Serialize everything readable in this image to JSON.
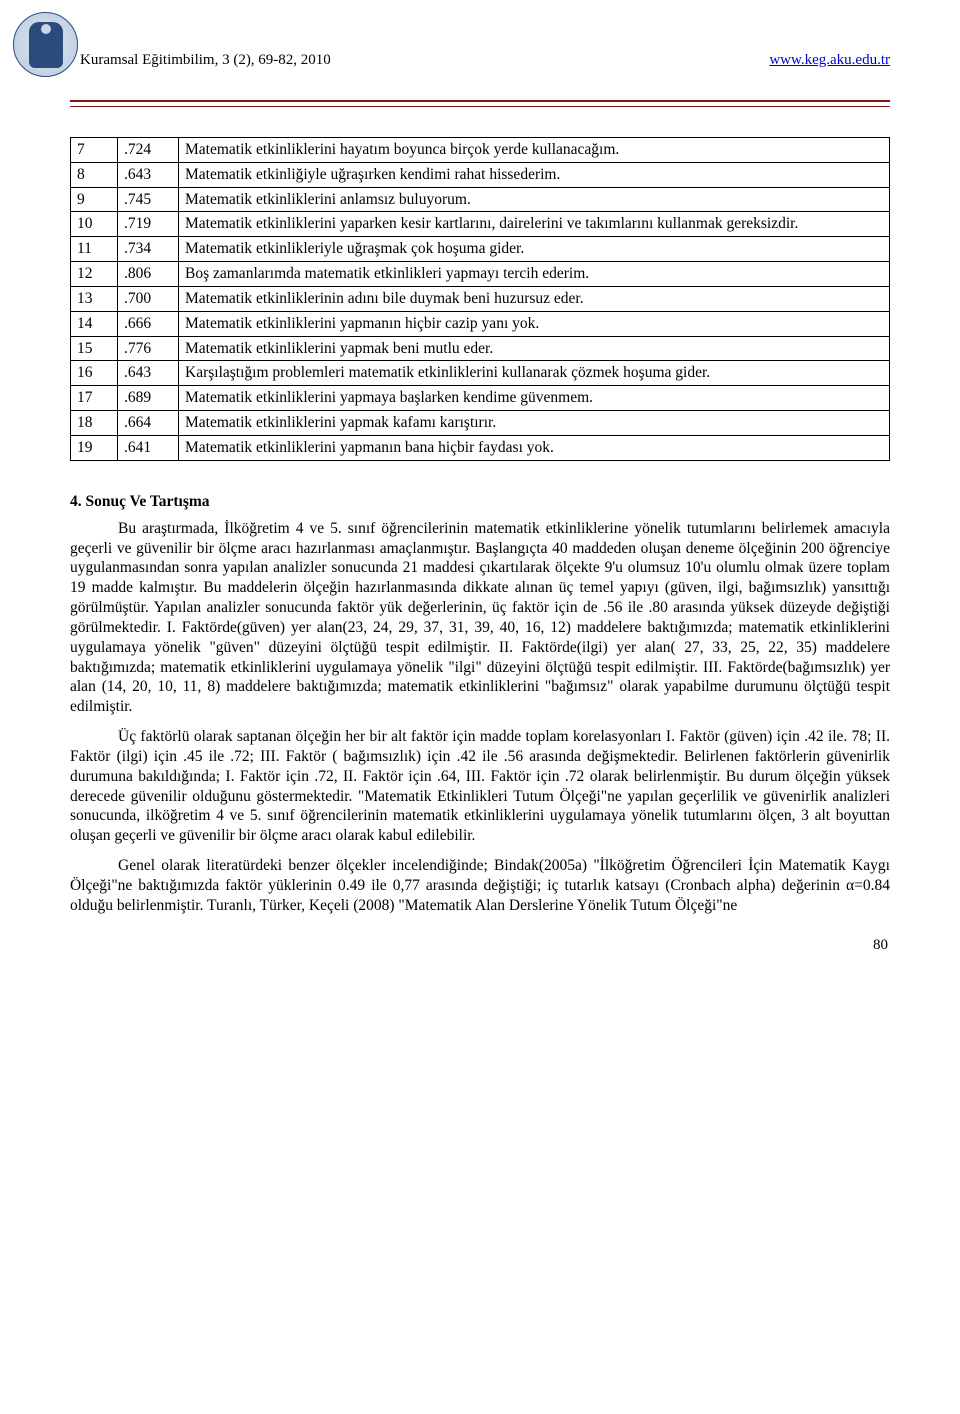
{
  "header": {
    "journal_ref": "Kuramsal Eğitimbilim, 3 (2), 69-82, 2010",
    "site_url": "www.keg.aku.edu.tr"
  },
  "table": {
    "rows": [
      {
        "n": "7",
        "v": ".724",
        "text": "Matematik etkinliklerini hayatım boyunca birçok yerde kullanacağım."
      },
      {
        "n": "8",
        "v": ".643",
        "text": "Matematik etkinliğiyle uğraşırken kendimi rahat hissederim."
      },
      {
        "n": "9",
        "v": ".745",
        "text": "Matematik etkinliklerini anlamsız buluyorum."
      },
      {
        "n": "10",
        "v": ".719",
        "text": "Matematik etkinliklerini yaparken kesir kartlarını, dairelerini ve takımlarını kullanmak gereksizdir."
      },
      {
        "n": "11",
        "v": ".734",
        "text": "Matematik etkinlikleriyle uğraşmak çok hoşuma gider."
      },
      {
        "n": "12",
        "v": ".806",
        "text": "Boş zamanlarımda matematik etkinlikleri yapmayı tercih ederim."
      },
      {
        "n": "13",
        "v": ".700",
        "text": "Matematik etkinliklerinin adını bile duymak beni huzursuz eder."
      },
      {
        "n": "14",
        "v": ".666",
        "text": "Matematik etkinliklerini yapmanın hiçbir cazip yanı yok."
      },
      {
        "n": "15",
        "v": ".776",
        "text": "Matematik etkinliklerini yapmak beni mutlu eder."
      },
      {
        "n": "16",
        "v": ".643",
        "text": "Karşılaştığım problemleri matematik etkinliklerini kullanarak çözmek hoşuma gider."
      },
      {
        "n": "17",
        "v": ".689",
        "text": "Matematik etkinliklerini yapmaya başlarken kendime güvenmem."
      },
      {
        "n": "18",
        "v": ".664",
        "text": "Matematik etkinliklerini yapmak kafamı karıştırır."
      },
      {
        "n": "19",
        "v": ".641",
        "text": "Matematik etkinliklerini yapmanın bana hiçbir faydası yok."
      }
    ]
  },
  "section_title": "4. Sonuç Ve Tartışma",
  "paragraphs": {
    "p1": "Bu araştırmada, İlköğretim 4 ve 5. sınıf öğrencilerinin matematik etkinliklerine yönelik tutumlarını belirlemek amacıyla geçerli ve güvenilir bir ölçme aracı hazırlanması amaçlanmıştır. Başlangıçta 40 maddeden oluşan deneme ölçeğinin 200 öğrenciye uygulanmasından sonra yapılan analizler sonucunda 21 maddesi çıkartılarak ölçekte 9'u olumsuz 10'u olumlu olmak üzere toplam 19 madde kalmıştır. Bu maddelerin ölçeğin hazırlanmasında dikkate alınan üç temel yapıyı (güven, ilgi, bağımsızlık) yansıttığı görülmüştür. Yapılan analizler sonucunda faktör yük değerlerinin, üç faktör için de .56 ile .80 arasında yüksek düzeyde değiştiği görülmektedir. I. Faktörde(güven) yer alan(23, 24, 29, 37, 31, 39, 40, 16, 12) maddelere baktığımızda; matematik etkinliklerini uygulamaya yönelik \"güven\" düzeyini ölçtüğü tespit edilmiştir. II. Faktörde(ilgi) yer alan( 27, 33, 25, 22, 35) maddelere baktığımızda; matematik etkinliklerini uygulamaya yönelik \"ilgi\" düzeyini ölçtüğü tespit edilmiştir. III. Faktörde(bağımsızlık) yer alan (14, 20, 10, 11, 8) maddelere baktığımızda; matematik etkinliklerini \"bağımsız\" olarak yapabilme durumunu ölçtüğü tespit edilmiştir.",
    "p2": "Üç faktörlü olarak saptanan ölçeğin her bir alt faktör için madde toplam korelasyonları I. Faktör (güven) için .42 ile. 78; II. Faktör (ilgi) için .45 ile .72; III. Faktör ( bağımsızlık) için .42 ile .56 arasında değişmektedir. Belirlenen faktörlerin güvenirlik durumuna bakıldığında; I. Faktör için .72, II. Faktör için .64, III. Faktör için .72 olarak belirlenmiştir. Bu durum ölçeğin yüksek derecede güvenilir olduğunu göstermektedir. \"Matematik Etkinlikleri Tutum Ölçeği\"ne yapılan geçerlilik ve güvenirlik analizleri sonucunda, ilköğretim 4 ve 5. sınıf öğrencilerinin matematik etkinliklerini uygulamaya yönelik tutumlarını ölçen, 3 alt boyuttan oluşan geçerli ve güvenilir bir ölçme aracı olarak kabul edilebilir.",
    "p3": "Genel olarak literatürdeki benzer ölçekler incelendiğinde; Bindak(2005a) \"İlköğretim Öğrencileri İçin Matematik Kaygı Ölçeği\"ne baktığımızda faktör yüklerinin 0.49 ile 0,77 arasında değiştiği; iç tutarlık katsayı (Cronbach alpha) değerinin α=0.84 olduğu belirlenmiştir. Turanlı, Türker, Keçeli (2008) \"Matematik Alan Derslerine Yönelik Tutum Ölçeği\"ne"
  },
  "page_number": "80",
  "colors": {
    "rule": "#7a1a1a",
    "link": "#0000cc",
    "text": "#000000",
    "logo_border": "#2a4b7c",
    "background": "#ffffff"
  },
  "typography": {
    "body_font": "Times New Roman",
    "body_size_pt": 12,
    "line_height": 1.28
  }
}
